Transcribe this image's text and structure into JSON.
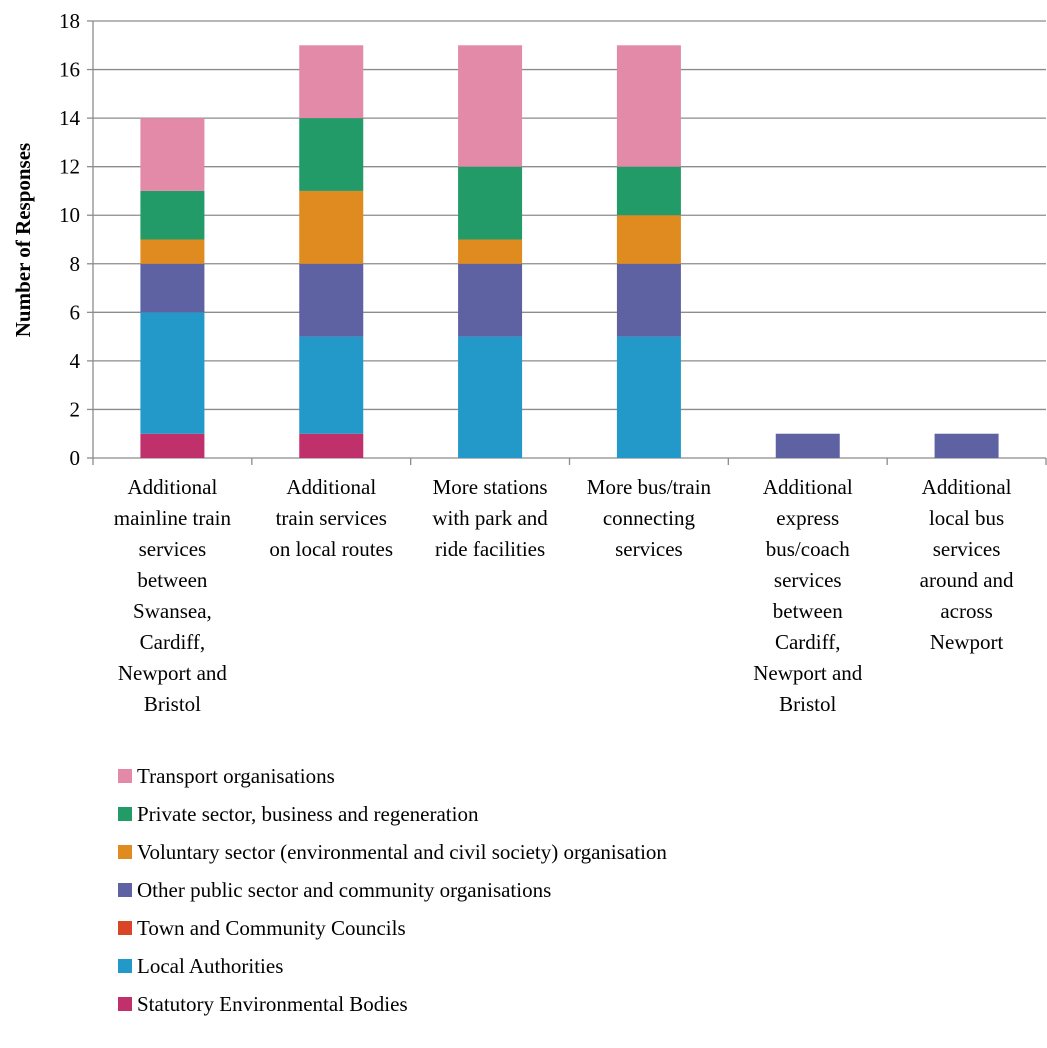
{
  "chart_data": {
    "type": "bar",
    "stacked": true,
    "title": "",
    "xlabel": "",
    "ylabel": "Number of Responses",
    "ylim": [
      0,
      18
    ],
    "ytick_step": 2,
    "grid": true,
    "legend_position": "bottom",
    "categories": [
      [
        "Additional",
        "mainline train",
        "services",
        "between",
        "Swansea,",
        "Cardiff,",
        "Newport and",
        "Bristol"
      ],
      [
        "Additional",
        "train services",
        "on local routes"
      ],
      [
        "More stations",
        "with park and",
        "ride facilities"
      ],
      [
        "More bus/train",
        "connecting",
        "services"
      ],
      [
        "Additional",
        "express",
        "bus/coach",
        "services",
        "between",
        "Cardiff,",
        "Newport and",
        "Bristol"
      ],
      [
        "Additional",
        "local bus",
        "services",
        "around and",
        "across",
        "Newport"
      ]
    ],
    "series": [
      {
        "name": "Statutory Environmental Bodies",
        "color": "#c0306a",
        "values": [
          1,
          1,
          0,
          0,
          0,
          0
        ]
      },
      {
        "name": "Local Authorities",
        "color": "#2299c8",
        "values": [
          5,
          4,
          5,
          5,
          0,
          0
        ]
      },
      {
        "name": "Town and Community Councils",
        "color": "#d84527",
        "values": [
          0,
          0,
          0,
          0,
          0,
          0
        ]
      },
      {
        "name": "Other public sector and community organisations",
        "color": "#5e62a2",
        "values": [
          2,
          3,
          3,
          3,
          1,
          1
        ]
      },
      {
        "name": "Voluntary sector (environmental and civil society) organisation",
        "color": "#e08b1f",
        "values": [
          1,
          3,
          1,
          2,
          0,
          0
        ]
      },
      {
        "name": "Private sector, business and regeneration",
        "color": "#229b68",
        "values": [
          2,
          3,
          3,
          2,
          0,
          0
        ]
      },
      {
        "name": "Transport organisations",
        "color": "#e28aa8",
        "values": [
          3,
          3,
          5,
          5,
          0,
          0
        ]
      }
    ]
  }
}
